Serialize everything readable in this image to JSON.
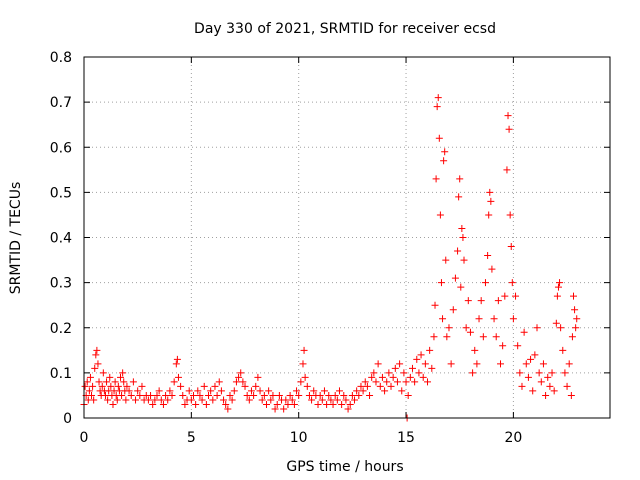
{
  "chart_data": {
    "type": "scatter",
    "title": "Day 330 of 2021, SRMTID for receiver ecsd",
    "xlabel": "GPS time / hours",
    "ylabel": "SRMTID / TECUs",
    "xlim": [
      0,
      24.5
    ],
    "ylim": [
      0,
      0.8
    ],
    "grid": true,
    "marker": "+",
    "x_ticks": [
      0,
      5,
      10,
      15,
      20
    ],
    "x_tick_labels": [
      "0",
      "5",
      "10",
      "15",
      "20"
    ],
    "y_ticks": [
      0,
      0.1,
      0.2,
      0.3,
      0.4,
      0.5,
      0.6,
      0.7,
      0.8
    ],
    "y_tick_labels": [
      "0",
      "0.1",
      "0.2",
      "0.3",
      "0.4",
      "0.5",
      "0.6",
      "0.7",
      "0.8"
    ],
    "series": [
      {
        "name": "SRMTID",
        "color": "#ff0000",
        "points": [
          [
            0.0,
            0.03
          ],
          [
            0.05,
            0.07
          ],
          [
            0.1,
            0.05
          ],
          [
            0.15,
            0.08
          ],
          [
            0.2,
            0.04
          ],
          [
            0.25,
            0.06
          ],
          [
            0.3,
            0.09
          ],
          [
            0.35,
            0.05
          ],
          [
            0.4,
            0.07
          ],
          [
            0.45,
            0.04
          ],
          [
            0.5,
            0.11
          ],
          [
            0.55,
            0.14
          ],
          [
            0.6,
            0.15
          ],
          [
            0.65,
            0.12
          ],
          [
            0.7,
            0.08
          ],
          [
            0.75,
            0.06
          ],
          [
            0.8,
            0.05
          ],
          [
            0.85,
            0.07
          ],
          [
            0.9,
            0.1
          ],
          [
            0.95,
            0.06
          ],
          [
            1.0,
            0.05
          ],
          [
            1.05,
            0.08
          ],
          [
            1.1,
            0.04
          ],
          [
            1.15,
            0.06
          ],
          [
            1.2,
            0.09
          ],
          [
            1.25,
            0.07
          ],
          [
            1.3,
            0.05
          ],
          [
            1.35,
            0.03
          ],
          [
            1.4,
            0.06
          ],
          [
            1.45,
            0.08
          ],
          [
            1.5,
            0.05
          ],
          [
            1.55,
            0.04
          ],
          [
            1.6,
            0.07
          ],
          [
            1.65,
            0.06
          ],
          [
            1.7,
            0.09
          ],
          [
            1.75,
            0.05
          ],
          [
            1.8,
            0.1
          ],
          [
            1.85,
            0.08
          ],
          [
            1.9,
            0.06
          ],
          [
            1.95,
            0.04
          ],
          [
            2.0,
            0.07
          ],
          [
            2.1,
            0.06
          ],
          [
            2.2,
            0.05
          ],
          [
            2.3,
            0.08
          ],
          [
            2.4,
            0.04
          ],
          [
            2.5,
            0.06
          ],
          [
            2.6,
            0.05
          ],
          [
            2.7,
            0.07
          ],
          [
            2.8,
            0.04
          ],
          [
            2.9,
            0.05
          ],
          [
            3.0,
            0.04
          ],
          [
            3.1,
            0.05
          ],
          [
            3.2,
            0.03
          ],
          [
            3.3,
            0.04
          ],
          [
            3.4,
            0.05
          ],
          [
            3.5,
            0.06
          ],
          [
            3.6,
            0.04
          ],
          [
            3.7,
            0.03
          ],
          [
            3.8,
            0.05
          ],
          [
            3.9,
            0.04
          ],
          [
            4.0,
            0.06
          ],
          [
            4.1,
            0.05
          ],
          [
            4.2,
            0.08
          ],
          [
            4.3,
            0.12
          ],
          [
            4.35,
            0.13
          ],
          [
            4.4,
            0.09
          ],
          [
            4.5,
            0.07
          ],
          [
            4.6,
            0.05
          ],
          [
            4.7,
            0.03
          ],
          [
            4.8,
            0.04
          ],
          [
            4.9,
            0.06
          ],
          [
            5.0,
            0.04
          ],
          [
            5.1,
            0.05
          ],
          [
            5.2,
            0.03
          ],
          [
            5.3,
            0.06
          ],
          [
            5.4,
            0.05
          ],
          [
            5.5,
            0.04
          ],
          [
            5.6,
            0.07
          ],
          [
            5.7,
            0.03
          ],
          [
            5.8,
            0.05
          ],
          [
            5.9,
            0.06
          ],
          [
            6.0,
            0.04
          ],
          [
            6.1,
            0.07
          ],
          [
            6.2,
            0.05
          ],
          [
            6.3,
            0.08
          ],
          [
            6.4,
            0.06
          ],
          [
            6.5,
            0.04
          ],
          [
            6.6,
            0.03
          ],
          [
            6.7,
            0.02
          ],
          [
            6.8,
            0.05
          ],
          [
            6.9,
            0.04
          ],
          [
            7.0,
            0.06
          ],
          [
            7.1,
            0.08
          ],
          [
            7.2,
            0.09
          ],
          [
            7.3,
            0.1
          ],
          [
            7.4,
            0.08
          ],
          [
            7.5,
            0.07
          ],
          [
            7.6,
            0.05
          ],
          [
            7.7,
            0.04
          ],
          [
            7.8,
            0.06
          ],
          [
            7.9,
            0.05
          ],
          [
            8.0,
            0.07
          ],
          [
            8.1,
            0.09
          ],
          [
            8.2,
            0.06
          ],
          [
            8.3,
            0.04
          ],
          [
            8.4,
            0.05
          ],
          [
            8.5,
            0.03
          ],
          [
            8.6,
            0.06
          ],
          [
            8.7,
            0.04
          ],
          [
            8.8,
            0.05
          ],
          [
            8.9,
            0.02
          ],
          [
            9.0,
            0.03
          ],
          [
            9.1,
            0.05
          ],
          [
            9.2,
            0.04
          ],
          [
            9.3,
            0.02
          ],
          [
            9.4,
            0.04
          ],
          [
            9.5,
            0.03
          ],
          [
            9.6,
            0.05
          ],
          [
            9.7,
            0.04
          ],
          [
            9.8,
            0.03
          ],
          [
            9.9,
            0.06
          ],
          [
            10.0,
            0.05
          ],
          [
            10.1,
            0.08
          ],
          [
            10.2,
            0.12
          ],
          [
            10.25,
            0.15
          ],
          [
            10.3,
            0.09
          ],
          [
            10.4,
            0.07
          ],
          [
            10.5,
            0.05
          ],
          [
            10.6,
            0.04
          ],
          [
            10.7,
            0.06
          ],
          [
            10.8,
            0.05
          ],
          [
            10.9,
            0.03
          ],
          [
            11.0,
            0.05
          ],
          [
            11.1,
            0.04
          ],
          [
            11.2,
            0.06
          ],
          [
            11.3,
            0.03
          ],
          [
            11.4,
            0.05
          ],
          [
            11.5,
            0.04
          ],
          [
            11.6,
            0.03
          ],
          [
            11.7,
            0.05
          ],
          [
            11.8,
            0.04
          ],
          [
            11.9,
            0.06
          ],
          [
            12.0,
            0.03
          ],
          [
            12.1,
            0.05
          ],
          [
            12.2,
            0.04
          ],
          [
            12.3,
            0.02
          ],
          [
            12.4,
            0.03
          ],
          [
            12.5,
            0.05
          ],
          [
            12.6,
            0.04
          ],
          [
            12.7,
            0.06
          ],
          [
            12.8,
            0.05
          ],
          [
            12.9,
            0.07
          ],
          [
            13.0,
            0.06
          ],
          [
            13.1,
            0.08
          ],
          [
            13.2,
            0.07
          ],
          [
            13.3,
            0.05
          ],
          [
            13.4,
            0.09
          ],
          [
            13.5,
            0.1
          ],
          [
            13.6,
            0.08
          ],
          [
            13.7,
            0.12
          ],
          [
            13.8,
            0.07
          ],
          [
            13.9,
            0.09
          ],
          [
            14.0,
            0.06
          ],
          [
            14.1,
            0.08
          ],
          [
            14.2,
            0.1
          ],
          [
            14.3,
            0.07
          ],
          [
            14.4,
            0.09
          ],
          [
            14.5,
            0.11
          ],
          [
            14.6,
            0.08
          ],
          [
            14.7,
            0.12
          ],
          [
            14.8,
            0.06
          ],
          [
            14.9,
            0.1
          ],
          [
            15.0,
            0.08
          ],
          [
            15.05,
            0.0
          ],
          [
            15.1,
            0.05
          ],
          [
            15.2,
            0.09
          ],
          [
            15.3,
            0.11
          ],
          [
            15.4,
            0.08
          ],
          [
            15.5,
            0.13
          ],
          [
            15.6,
            0.1
          ],
          [
            15.7,
            0.14
          ],
          [
            15.8,
            0.09
          ],
          [
            15.9,
            0.12
          ],
          [
            16.0,
            0.08
          ],
          [
            16.1,
            0.15
          ],
          [
            16.2,
            0.11
          ],
          [
            16.3,
            0.18
          ],
          [
            16.35,
            0.25
          ],
          [
            16.4,
            0.53
          ],
          [
            16.45,
            0.69
          ],
          [
            16.5,
            0.71
          ],
          [
            16.55,
            0.62
          ],
          [
            16.6,
            0.45
          ],
          [
            16.65,
            0.3
          ],
          [
            16.7,
            0.22
          ],
          [
            16.75,
            0.57
          ],
          [
            16.8,
            0.59
          ],
          [
            16.85,
            0.35
          ],
          [
            16.9,
            0.18
          ],
          [
            17.0,
            0.2
          ],
          [
            17.1,
            0.12
          ],
          [
            17.2,
            0.24
          ],
          [
            17.3,
            0.31
          ],
          [
            17.4,
            0.37
          ],
          [
            17.45,
            0.49
          ],
          [
            17.5,
            0.53
          ],
          [
            17.55,
            0.29
          ],
          [
            17.6,
            0.42
          ],
          [
            17.65,
            0.4
          ],
          [
            17.7,
            0.35
          ],
          [
            17.8,
            0.2
          ],
          [
            17.9,
            0.26
          ],
          [
            18.0,
            0.19
          ],
          [
            18.1,
            0.1
          ],
          [
            18.2,
            0.15
          ],
          [
            18.3,
            0.12
          ],
          [
            18.4,
            0.22
          ],
          [
            18.5,
            0.26
          ],
          [
            18.6,
            0.18
          ],
          [
            18.7,
            0.3
          ],
          [
            18.8,
            0.36
          ],
          [
            18.85,
            0.45
          ],
          [
            18.9,
            0.5
          ],
          [
            18.95,
            0.48
          ],
          [
            19.0,
            0.33
          ],
          [
            19.1,
            0.22
          ],
          [
            19.2,
            0.18
          ],
          [
            19.3,
            0.26
          ],
          [
            19.4,
            0.12
          ],
          [
            19.5,
            0.16
          ],
          [
            19.6,
            0.27
          ],
          [
            19.7,
            0.55
          ],
          [
            19.75,
            0.67
          ],
          [
            19.8,
            0.64
          ],
          [
            19.85,
            0.45
          ],
          [
            19.9,
            0.38
          ],
          [
            19.95,
            0.3
          ],
          [
            20.0,
            0.22
          ],
          [
            20.1,
            0.27
          ],
          [
            20.2,
            0.16
          ],
          [
            20.3,
            0.1
          ],
          [
            20.4,
            0.07
          ],
          [
            20.5,
            0.19
          ],
          [
            20.6,
            0.12
          ],
          [
            20.7,
            0.09
          ],
          [
            20.8,
            0.13
          ],
          [
            20.9,
            0.06
          ],
          [
            21.0,
            0.14
          ],
          [
            21.1,
            0.2
          ],
          [
            21.2,
            0.1
          ],
          [
            21.3,
            0.08
          ],
          [
            21.4,
            0.12
          ],
          [
            21.5,
            0.05
          ],
          [
            21.6,
            0.09
          ],
          [
            21.7,
            0.07
          ],
          [
            21.8,
            0.1
          ],
          [
            21.9,
            0.06
          ],
          [
            22.0,
            0.21
          ],
          [
            22.05,
            0.27
          ],
          [
            22.1,
            0.29
          ],
          [
            22.15,
            0.3
          ],
          [
            22.2,
            0.2
          ],
          [
            22.3,
            0.15
          ],
          [
            22.4,
            0.1
          ],
          [
            22.5,
            0.07
          ],
          [
            22.6,
            0.12
          ],
          [
            22.7,
            0.05
          ],
          [
            22.75,
            0.18
          ],
          [
            22.8,
            0.27
          ],
          [
            22.85,
            0.24
          ],
          [
            22.9,
            0.2
          ],
          [
            22.95,
            0.22
          ]
        ]
      }
    ]
  }
}
